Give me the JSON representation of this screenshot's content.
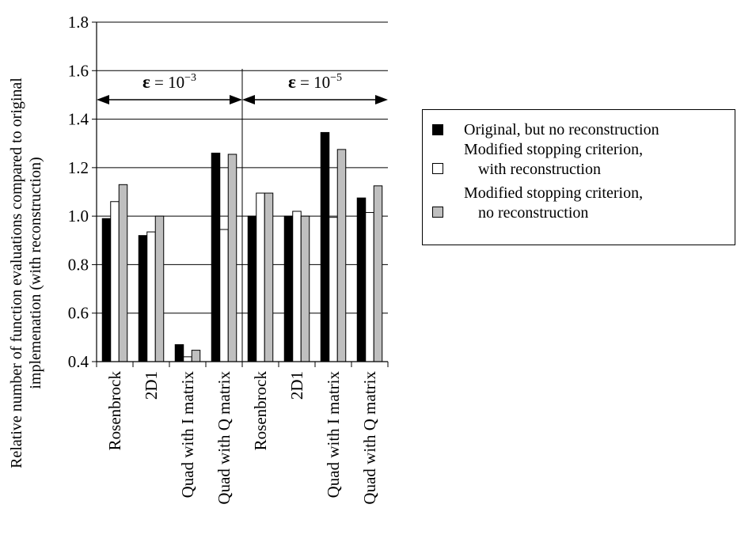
{
  "chart_data": {
    "type": "bar",
    "ylabel_line1": "Relative number of function evaluations compared to original",
    "ylabel_line2": "implemenation (with reconstruction)",
    "ylim": [
      0.4,
      1.8
    ],
    "yticks": [
      "0.4",
      "0.6",
      "0.8",
      "1.0",
      "1.2",
      "1.4",
      "1.6",
      "1.8"
    ],
    "grid": true,
    "legend_position": "right",
    "categories": [
      "Rosenbrock",
      "2D1",
      "Quad with I matrix",
      "Quad with Q matrix",
      "Rosenbrock",
      "2D1",
      "Quad with I matrix",
      "Quad with Q matrix"
    ],
    "groups": [
      {
        "label_prefix": "ε",
        "label_mid": " = 10",
        "label_exp": "−3",
        "start": 0,
        "end": 4
      },
      {
        "label_prefix": "ε",
        "label_mid": " = 10",
        "label_exp": "−5",
        "start": 4,
        "end": 8
      }
    ],
    "series": [
      {
        "name": "Original, but no reconstruction",
        "color": "#000000",
        "values": [
          0.99,
          0.92,
          0.47,
          1.26,
          1.0,
          1.0,
          1.345,
          1.075
        ]
      },
      {
        "name_line1": "Modified stopping criterion,",
        "name_line2": "with reconstruction",
        "color": "#ffffff",
        "values": [
          1.06,
          0.935,
          0.42,
          0.945,
          1.095,
          1.02,
          0.995,
          1.015
        ]
      },
      {
        "name_line1": "Modified stopping criterion,",
        "name_line2": "no reconstruction",
        "color": "#bfbfbf",
        "values": [
          1.13,
          1.0,
          0.447,
          1.255,
          1.095,
          1.0,
          1.275,
          1.125
        ]
      }
    ]
  }
}
